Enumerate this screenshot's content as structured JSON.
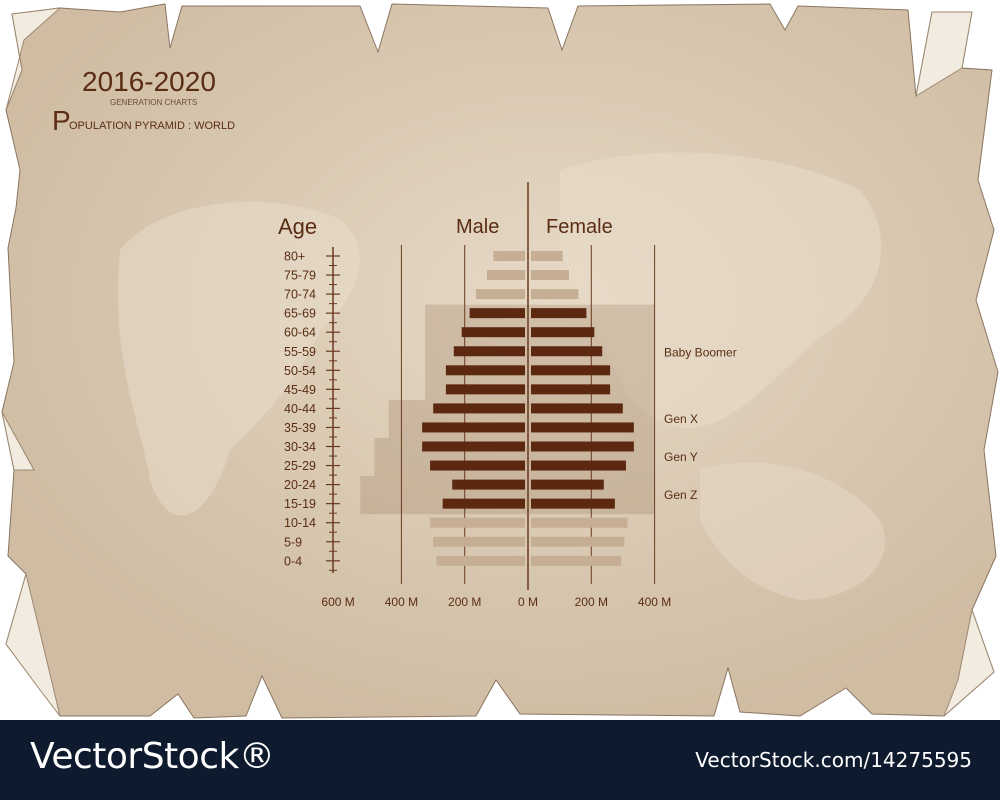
{
  "header": {
    "year_range": "2016-2020",
    "subtitle": "GENERATION CHARTS",
    "title_initial": "P",
    "title_rest": "OPULATION PYRAMID : WORLD"
  },
  "colors": {
    "paper": "#d8c7b0",
    "paper_light": "#e3d6c3",
    "dark_bar": "#5c2810",
    "light_bar": "#c6ae95",
    "axis": "#6b3a1f",
    "text": "#5a2d14",
    "gen_band": "#9c7a5c",
    "footer_bg": "#0e1a2e"
  },
  "chart_data": {
    "type": "bar",
    "orientation": "horizontal",
    "layout": "population-pyramid",
    "age_axis_title": "Age",
    "categories": [
      "80+",
      "75-79",
      "70-74",
      "65-69",
      "60-64",
      "55-59",
      "50-54",
      "45-49",
      "40-44",
      "35-39",
      "30-34",
      "25-29",
      "20-24",
      "15-19",
      "10-14",
      "5-9",
      "0-4"
    ],
    "series": [
      {
        "name": "Male",
        "values": [
          100,
          120,
          155,
          175,
          200,
          225,
          250,
          250,
          290,
          325,
          325,
          300,
          230,
          260,
          300,
          290,
          280
        ]
      },
      {
        "name": "Female",
        "values": [
          100,
          120,
          150,
          175,
          200,
          225,
          250,
          250,
          290,
          325,
          325,
          300,
          230,
          265,
          305,
          295,
          285
        ]
      }
    ],
    "highlight_rows": [
      "65-69",
      "60-64",
      "55-59",
      "50-54",
      "45-49",
      "40-44",
      "35-39",
      "30-34",
      "25-29",
      "20-24",
      "15-19"
    ],
    "x_tick_labels": [
      "600 M",
      "400 M",
      "200 M",
      "0 M",
      "200 M",
      "400 M"
    ],
    "x_ticks": [
      -600,
      -400,
      -200,
      0,
      200,
      400
    ],
    "xlim": [
      -600,
      400
    ],
    "generations": [
      {
        "label": "Baby Boomer",
        "from": "65-69",
        "to": "45-49",
        "extent": 325
      },
      {
        "label": "Gen X",
        "from": "40-44",
        "to": "35-39",
        "extent": 440
      },
      {
        "label": "Gen Y",
        "from": "30-34",
        "to": "25-29",
        "extent": 485
      },
      {
        "label": "Gen Z",
        "from": "20-24",
        "to": "15-19",
        "extent": 530
      }
    ]
  },
  "footer": {
    "brand": "VectorStock®",
    "stock_id": "VectorStock.com/14275595"
  }
}
